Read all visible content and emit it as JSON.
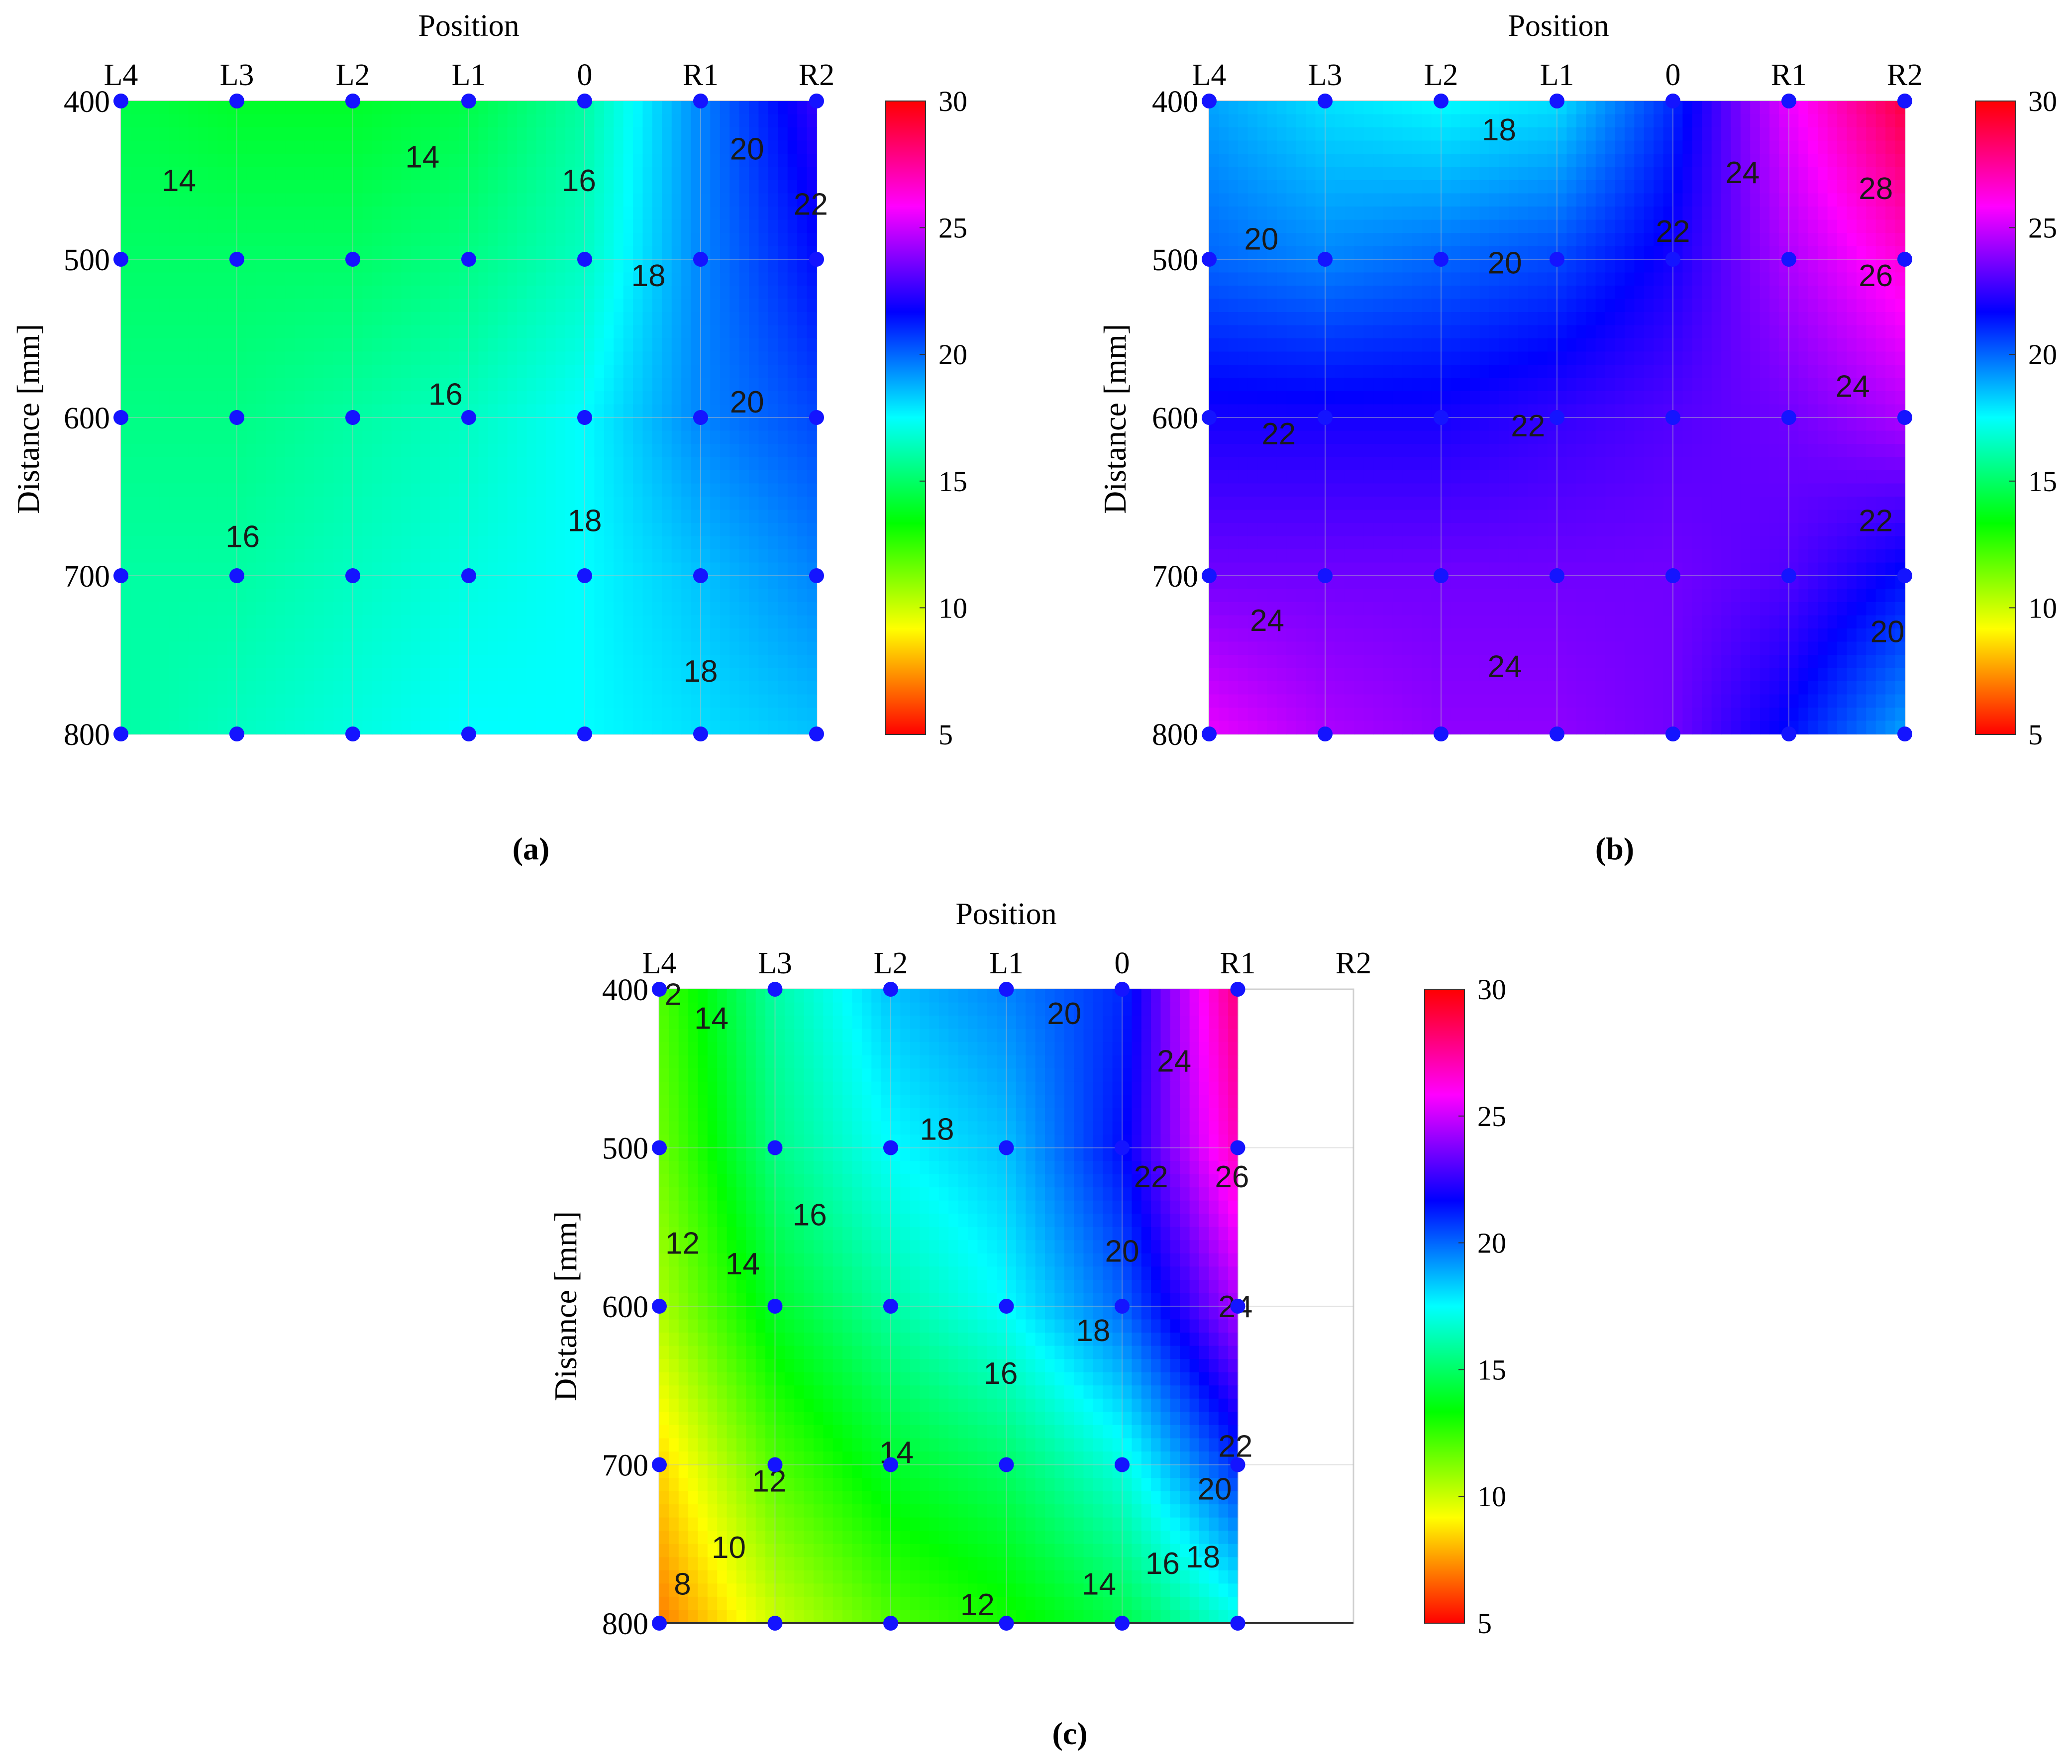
{
  "figure": {
    "panel_captions": [
      "(a)",
      "(b)",
      "(c)"
    ]
  },
  "chart_data": [
    {
      "id": "a",
      "type": "heatmap",
      "caption": "(a)",
      "title": "",
      "xlabel": "Position",
      "ylabel": "Distance [mm]",
      "x_categories": [
        "L4",
        "L3",
        "L2",
        "L1",
        "0",
        "R1",
        "R2"
      ],
      "y_ticks": [
        400,
        500,
        600,
        700,
        800
      ],
      "ylim": [
        400,
        800
      ],
      "grid": true,
      "colormap": [
        "#ff0000",
        "#ffff00",
        "#00ff00",
        "#00ffff",
        "#0000ff",
        "#ff00ff",
        "#ff0000"
      ],
      "color_range": [
        5,
        30
      ],
      "colorbar_ticks": [
        5,
        10,
        15,
        20,
        25,
        30
      ],
      "grid_values": [
        [
          14.5,
          14.0,
          14.0,
          14.5,
          16.0,
          19.5,
          22.5
        ],
        [
          15.0,
          15.0,
          15.0,
          15.5,
          16.5,
          19.5,
          21.5
        ],
        [
          15.5,
          15.5,
          16.0,
          16.5,
          17.5,
          19.5,
          20.5
        ],
        [
          16.0,
          16.0,
          16.5,
          17.0,
          17.5,
          18.5,
          19.5
        ],
        [
          16.0,
          16.5,
          17.0,
          17.5,
          17.5,
          18.0,
          18.5
        ]
      ],
      "measured_points": {
        "x": [
          "L4",
          "L3",
          "L2",
          "L1",
          "0",
          "R1",
          "R2"
        ],
        "y": [
          400,
          500,
          600,
          700,
          800
        ]
      },
      "contour_labels": [
        {
          "text": "14",
          "x": 0.5,
          "y": 450
        },
        {
          "text": "14",
          "x": 2.6,
          "y": 435
        },
        {
          "text": "16",
          "x": 3.95,
          "y": 450
        },
        {
          "text": "20",
          "x": 5.4,
          "y": 430
        },
        {
          "text": "22",
          "x": 5.95,
          "y": 465
        },
        {
          "text": "18",
          "x": 4.55,
          "y": 510
        },
        {
          "text": "16",
          "x": 2.8,
          "y": 585
        },
        {
          "text": "20",
          "x": 5.4,
          "y": 590
        },
        {
          "text": "16",
          "x": 1.05,
          "y": 675
        },
        {
          "text": "18",
          "x": 4.0,
          "y": 665
        },
        {
          "text": "18",
          "x": 5.0,
          "y": 760
        }
      ]
    },
    {
      "id": "b",
      "type": "heatmap",
      "caption": "(b)",
      "title": "",
      "xlabel": "Position",
      "ylabel": "Distance [mm]",
      "x_categories": [
        "L4",
        "L3",
        "L2",
        "L1",
        "0",
        "R1",
        "R2"
      ],
      "y_ticks": [
        400,
        500,
        600,
        700,
        800
      ],
      "ylim": [
        400,
        800
      ],
      "grid": true,
      "colormap": [
        "#ff0000",
        "#ffff00",
        "#00ff00",
        "#00ffff",
        "#0000ff",
        "#ff00ff",
        "#ff0000"
      ],
      "color_range": [
        5,
        30
      ],
      "colorbar_ticks": [
        5,
        10,
        15,
        20,
        25,
        30
      ],
      "grid_values": [
        [
          19.0,
          18.0,
          17.5,
          18.0,
          21.0,
          25.5,
          29.0
        ],
        [
          20.0,
          19.5,
          20.0,
          20.5,
          22.0,
          24.5,
          26.5
        ],
        [
          22.0,
          22.0,
          22.0,
          22.5,
          23.0,
          23.5,
          24.5
        ],
        [
          23.5,
          23.5,
          23.5,
          23.5,
          23.5,
          23.0,
          21.5
        ],
        [
          25.5,
          24.5,
          24.0,
          24.0,
          23.5,
          21.5,
          19.0
        ]
      ],
      "measured_points": {
        "x": [
          "L4",
          "L3",
          "L2",
          "L1",
          "0",
          "R1",
          "R2"
        ],
        "y": [
          400,
          500,
          600,
          700,
          800
        ]
      },
      "contour_labels": [
        {
          "text": "18",
          "x": 2.5,
          "y": 418
        },
        {
          "text": "24",
          "x": 4.6,
          "y": 445
        },
        {
          "text": "28",
          "x": 5.75,
          "y": 455
        },
        {
          "text": "20",
          "x": 0.45,
          "y": 487
        },
        {
          "text": "20",
          "x": 2.55,
          "y": 502
        },
        {
          "text": "22",
          "x": 4.0,
          "y": 482
        },
        {
          "text": "26",
          "x": 5.75,
          "y": 510
        },
        {
          "text": "24",
          "x": 5.55,
          "y": 580
        },
        {
          "text": "22",
          "x": 0.6,
          "y": 610
        },
        {
          "text": "22",
          "x": 2.75,
          "y": 605
        },
        {
          "text": "22",
          "x": 5.75,
          "y": 665
        },
        {
          "text": "24",
          "x": 0.5,
          "y": 728
        },
        {
          "text": "24",
          "x": 2.55,
          "y": 757
        },
        {
          "text": "20",
          "x": 5.85,
          "y": 735
        }
      ]
    },
    {
      "id": "c",
      "type": "heatmap",
      "caption": "(c)",
      "title": "",
      "xlabel": "Position",
      "ylabel": "Distance [mm]",
      "x_categories": [
        "L4",
        "L3",
        "L2",
        "L1",
        "0",
        "R1",
        "R2"
      ],
      "y_ticks": [
        400,
        500,
        600,
        700,
        800
      ],
      "ylim": [
        400,
        800
      ],
      "data_x_extent": [
        "L4",
        "R1"
      ],
      "grid": true,
      "colormap": [
        "#ff0000",
        "#ffff00",
        "#00ff00",
        "#00ffff",
        "#0000ff",
        "#ff00ff",
        "#ff0000"
      ],
      "color_range": [
        5,
        30
      ],
      "colorbar_ticks": [
        5,
        10,
        15,
        20,
        25,
        30
      ],
      "grid_values": [
        [
          12.0,
          16.0,
          18.5,
          19.5,
          21.0,
          28.0
        ],
        [
          11.5,
          15.5,
          17.5,
          18.5,
          21.5,
          27.0
        ],
        [
          10.5,
          14.0,
          16.0,
          17.5,
          20.0,
          24.5
        ],
        [
          8.5,
          12.0,
          14.0,
          15.0,
          17.0,
          21.0
        ],
        [
          7.0,
          10.0,
          12.0,
          13.0,
          14.5,
          17.0
        ]
      ],
      "measured_points": {
        "x": [
          "L4",
          "L3",
          "L2",
          "L1",
          "0",
          "R1"
        ],
        "y": [
          400,
          500,
          600,
          700,
          800
        ]
      },
      "contour_labels": [
        {
          "text": "2",
          "x": 0.12,
          "y": 403
        },
        {
          "text": "14",
          "x": 0.45,
          "y": 418
        },
        {
          "text": "20",
          "x": 3.5,
          "y": 415
        },
        {
          "text": "24",
          "x": 4.45,
          "y": 445
        },
        {
          "text": "18",
          "x": 2.4,
          "y": 488
        },
        {
          "text": "22",
          "x": 4.25,
          "y": 518
        },
        {
          "text": "26",
          "x": 4.95,
          "y": 518
        },
        {
          "text": "16",
          "x": 1.3,
          "y": 542
        },
        {
          "text": "12",
          "x": 0.2,
          "y": 560
        },
        {
          "text": "14",
          "x": 0.72,
          "y": 573
        },
        {
          "text": "20",
          "x": 4.0,
          "y": 565
        },
        {
          "text": "24",
          "x": 4.98,
          "y": 600
        },
        {
          "text": "18",
          "x": 3.75,
          "y": 615
        },
        {
          "text": "16",
          "x": 2.95,
          "y": 642
        },
        {
          "text": "22",
          "x": 4.98,
          "y": 688
        },
        {
          "text": "14",
          "x": 2.05,
          "y": 692
        },
        {
          "text": "12",
          "x": 0.95,
          "y": 710
        },
        {
          "text": "20",
          "x": 4.8,
          "y": 715
        },
        {
          "text": "10",
          "x": 0.6,
          "y": 752
        },
        {
          "text": "16",
          "x": 4.35,
          "y": 762
        },
        {
          "text": "18",
          "x": 4.7,
          "y": 758
        },
        {
          "text": "8",
          "x": 0.2,
          "y": 775
        },
        {
          "text": "14",
          "x": 3.8,
          "y": 775
        },
        {
          "text": "12",
          "x": 2.75,
          "y": 788
        }
      ]
    }
  ]
}
